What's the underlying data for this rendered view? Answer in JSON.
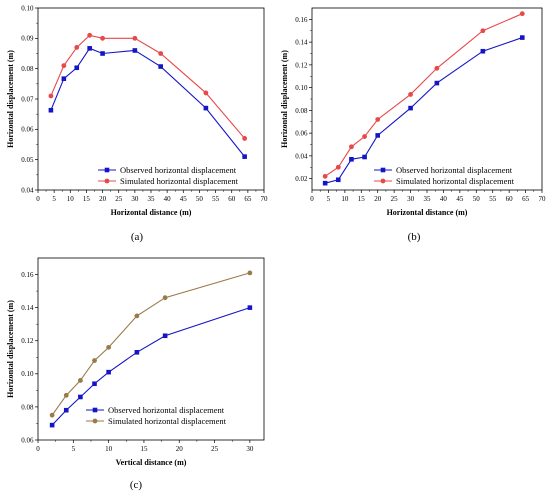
{
  "chart_data": [
    {
      "type": "line",
      "panel_label": "(a)",
      "xlabel": "Horizontal distance (m)",
      "ylabel": "Horizontal displacement (m)",
      "xlim": [
        0,
        70
      ],
      "ylim": [
        0.04,
        0.1
      ],
      "xticks": [
        0,
        5,
        10,
        15,
        20,
        25,
        30,
        35,
        40,
        45,
        50,
        55,
        60,
        65,
        70
      ],
      "yticks": [
        0.04,
        0.05,
        0.06,
        0.07,
        0.08,
        0.09,
        0.1
      ],
      "yticks_labels": [
        "0.04",
        "0.05",
        "0.06",
        "0.07",
        "0.08",
        "0.09",
        "0.10"
      ],
      "legend_position": "bottom-right",
      "series": [
        {
          "name": "Observed horizontal displacement",
          "color": "#1515c8",
          "marker": "square",
          "x": [
            4,
            8,
            12,
            16,
            20,
            30,
            38,
            52,
            64
          ],
          "y": [
            0.0663,
            0.0767,
            0.0803,
            0.0867,
            0.085,
            0.086,
            0.0807,
            0.067,
            0.051
          ]
        },
        {
          "name": "Simulated horizontal displacement",
          "color": "#e8484a",
          "marker": "circle",
          "x": [
            4,
            8,
            12,
            16,
            20,
            30,
            38,
            52,
            64
          ],
          "y": [
            0.071,
            0.081,
            0.087,
            0.091,
            0.09,
            0.09,
            0.085,
            0.072,
            0.057
          ]
        }
      ]
    },
    {
      "type": "line",
      "panel_label": "(b)",
      "xlabel": "Horizontal distance (m)",
      "ylabel": "Horizontal displacement (m)",
      "xlim": [
        0,
        70
      ],
      "ylim": [
        0.01,
        0.17
      ],
      "xticks": [
        0,
        5,
        10,
        15,
        20,
        25,
        30,
        35,
        40,
        45,
        50,
        55,
        60,
        65,
        70
      ],
      "yticks": [
        0.02,
        0.04,
        0.06,
        0.08,
        0.1,
        0.12,
        0.14,
        0.16
      ],
      "yticks_labels": [
        "0.02",
        "0.04",
        "0.06",
        "0.08",
        "0.10",
        "0.12",
        "0.14",
        "0.16"
      ],
      "legend_position": "bottom-right",
      "series": [
        {
          "name": "Observed horizontal displacement",
          "color": "#1515c8",
          "marker": "square",
          "x": [
            4,
            8,
            12,
            16,
            20,
            30,
            38,
            52,
            64
          ],
          "y": [
            0.016,
            0.019,
            0.037,
            0.039,
            0.058,
            0.082,
            0.104,
            0.132,
            0.144
          ]
        },
        {
          "name": "Simulated horizontal displacement",
          "color": "#e8484a",
          "marker": "circle",
          "x": [
            4,
            8,
            12,
            16,
            20,
            30,
            38,
            52,
            64
          ],
          "y": [
            0.022,
            0.03,
            0.048,
            0.057,
            0.072,
            0.094,
            0.117,
            0.15,
            0.165
          ]
        }
      ]
    },
    {
      "type": "line",
      "panel_label": "(c)",
      "xlabel": "Vertical distance (m)",
      "ylabel": "Horizontal displacement (m)",
      "xlim": [
        0,
        32
      ],
      "ylim": [
        0.06,
        0.17
      ],
      "xticks": [
        0,
        5,
        10,
        15,
        20,
        25,
        30
      ],
      "yticks": [
        0.06,
        0.08,
        0.1,
        0.12,
        0.14,
        0.16
      ],
      "yticks_labels": [
        "0.06",
        "0.08",
        "0.10",
        "0.12",
        "0.14",
        "0.16"
      ],
      "legend_position": "bottom-right",
      "series": [
        {
          "name": "Observed horizontal displacement",
          "color": "#1515c8",
          "marker": "square",
          "x": [
            2,
            4,
            6,
            8,
            10,
            14,
            18,
            30
          ],
          "y": [
            0.069,
            0.078,
            0.086,
            0.094,
            0.101,
            0.113,
            0.123,
            0.14
          ]
        },
        {
          "name": "Simulated horizontal displacement",
          "color": "#9a7a48",
          "marker": "circle",
          "x": [
            2,
            4,
            6,
            8,
            10,
            14,
            18,
            30
          ],
          "y": [
            0.075,
            0.087,
            0.096,
            0.108,
            0.116,
            0.135,
            0.146,
            0.161
          ]
        }
      ]
    }
  ]
}
